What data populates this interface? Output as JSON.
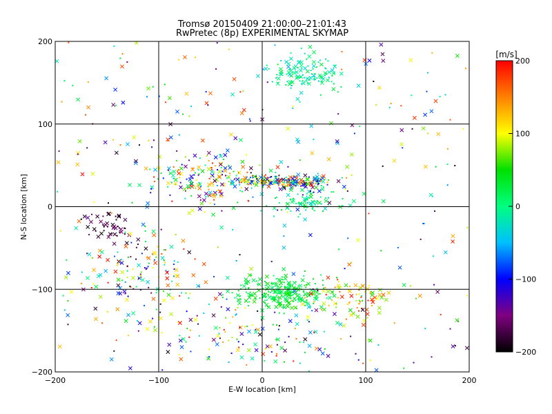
{
  "chart_data": {
    "type": "scatter",
    "title": "Tromsø 20150409 21:00:00–21:01:43",
    "subtitle": "RwPretec (8p) EXPERIMENTAL SKYMAP",
    "xlabel": "E-W location [km]",
    "ylabel": "N-S location [km]",
    "xlim": [
      -200,
      200
    ],
    "ylim": [
      -200,
      200
    ],
    "xticks": [
      -200,
      -100,
      0,
      100,
      200
    ],
    "yticks": [
      -200,
      -100,
      0,
      100,
      200
    ],
    "grid": true,
    "colorbar": {
      "label": "[m/s]",
      "range": [
        -200,
        200
      ],
      "ticks": [
        200,
        100,
        0,
        -100,
        -200
      ],
      "colormap": [
        "#000000",
        "#800080",
        "#0000ff",
        "#00c0ff",
        "#00ff80",
        "#00e000",
        "#ffff00",
        "#ff8000",
        "#ff0000"
      ]
    },
    "marker_types": [
      "x",
      "dot"
    ],
    "clusters": [
      {
        "center": [
          -55,
          30
        ],
        "spread": [
          50,
          30
        ],
        "count": 170,
        "velocity": [
          -150,
          200
        ]
      },
      {
        "center": [
          25,
          30
        ],
        "spread": [
          50,
          8
        ],
        "count": 230,
        "velocity": [
          -200,
          200
        ]
      },
      {
        "center": [
          40,
          160
        ],
        "spread": [
          35,
          25
        ],
        "count": 130,
        "velocity": [
          -40,
          30
        ]
      },
      {
        "center": [
          40,
          5
        ],
        "spread": [
          40,
          15
        ],
        "count": 80,
        "velocity": [
          -40,
          40
        ]
      },
      {
        "center": [
          20,
          -105
        ],
        "spread": [
          45,
          18
        ],
        "count": 270,
        "velocity": [
          0,
          60
        ]
      },
      {
        "center": [
          90,
          -110
        ],
        "spread": [
          40,
          25
        ],
        "count": 80,
        "velocity": [
          50,
          200
        ]
      },
      {
        "center": [
          -145,
          -25
        ],
        "spread": [
          25,
          20
        ],
        "count": 50,
        "velocity": [
          -200,
          -150
        ]
      },
      {
        "center": [
          -110,
          -80
        ],
        "spread": [
          60,
          45
        ],
        "count": 140,
        "velocity": [
          -200,
          200
        ]
      },
      {
        "center": [
          0,
          -150
        ],
        "spread": [
          110,
          35
        ],
        "count": 130,
        "velocity": [
          -200,
          200
        ]
      },
      {
        "center": [
          0,
          0
        ],
        "spread": [
          200,
          200
        ],
        "count": 320,
        "velocity": [
          -200,
          200
        ]
      }
    ]
  }
}
